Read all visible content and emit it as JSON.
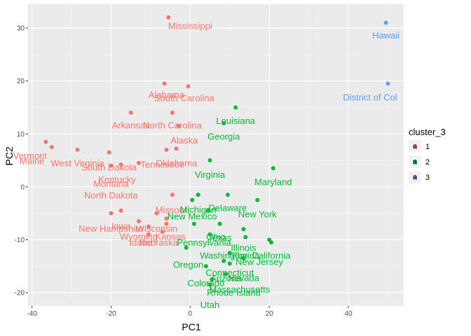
{
  "chart_data": {
    "type": "scatter",
    "title": "",
    "xlabel": "PC1",
    "ylabel": "PC2",
    "xlim": [
      -41,
      54
    ],
    "ylim": [
      -22.5,
      34.5
    ],
    "x_ticks": [
      -40,
      -20,
      0,
      20,
      40
    ],
    "y_ticks": [
      -20,
      -10,
      0,
      10,
      20,
      30
    ],
    "x_tick_labels": [
      "-40",
      "-20",
      "0",
      "20",
      "40"
    ],
    "y_tick_labels": [
      "-20",
      "-10",
      "0",
      "10",
      "20",
      "30"
    ],
    "grid": true,
    "legend": {
      "title": "cluster_3",
      "placement": "right",
      "entries": [
        {
          "label": "1",
          "color": "#F8766D",
          "glyph": "a"
        },
        {
          "label": "2",
          "color": "#00BA38",
          "glyph": "a"
        },
        {
          "label": "3",
          "color": "#619CFF",
          "glyph": "a"
        }
      ]
    },
    "series": [
      {
        "name": "1",
        "color": "#F8766D",
        "points": [
          {
            "x": -5.5,
            "y": 32,
            "label": "Mississippi"
          },
          {
            "x": -6.5,
            "y": 19.5,
            "label": "Alabama"
          },
          {
            "x": -0.5,
            "y": 19,
            "label": "South Carolina"
          },
          {
            "x": -15,
            "y": 14,
            "label": "Arkansas"
          },
          {
            "x": -4.5,
            "y": 14,
            "label": "North Carolina"
          },
          {
            "x": -3,
            "y": 11.5
          },
          {
            "x": -6,
            "y": 7,
            "label": "Alaska"
          },
          {
            "x": -36.5,
            "y": 8.5,
            "label": "Vermont"
          },
          {
            "x": -35,
            "y": 7.5,
            "label": "Maine"
          },
          {
            "x": -28.5,
            "y": 7,
            "label": "West Virginia"
          },
          {
            "x": -20.5,
            "y": 6.5,
            "label": "South Dakota"
          },
          {
            "x": -3.5,
            "y": 7.2,
            "label": "Oklahoma"
          },
          {
            "x": -17.5,
            "y": 4.2,
            "label": "Kentucky"
          },
          {
            "x": -20,
            "y": 4,
            "label": "Montana"
          },
          {
            "x": -13,
            "y": 4.5,
            "label": "Tennessee"
          },
          {
            "x": -4.5,
            "y": -1.5,
            "label": "North Dakota"
          },
          {
            "x": -20,
            "y": -5,
            "label": "Missouri"
          },
          {
            "x": -17.5,
            "y": -4.5,
            "label": "Iowa"
          },
          {
            "x": -8.5,
            "y": -5,
            "label": "New Hampshire"
          },
          {
            "x": -6,
            "y": -6,
            "label": "Wisconsin"
          },
          {
            "x": -6,
            "y": -7,
            "label": "Kansas"
          },
          {
            "x": -13,
            "y": -6.5,
            "label": "Wyoming"
          },
          {
            "x": -10.5,
            "y": -7.5,
            "label": "Idaho"
          },
          {
            "x": -7,
            "y": -8.5,
            "label": "Nebraska"
          },
          {
            "x": -10.5,
            "y": -9
          }
        ]
      },
      {
        "name": "2",
        "color": "#00BA38",
        "points": [
          {
            "x": 11.5,
            "y": 15,
            "label": "Louisiana"
          },
          {
            "x": 8.5,
            "y": 12,
            "label": "Georgia"
          },
          {
            "x": 5,
            "y": 5,
            "label": "Virginia"
          },
          {
            "x": 21,
            "y": 3.5,
            "label": "Maryland"
          },
          {
            "x": 9.5,
            "y": -1.5,
            "label": "Delaware"
          },
          {
            "x": 17,
            "y": -2.5,
            "label": "New York"
          },
          {
            "x": 2,
            "y": -1.5,
            "label": "Michigan"
          },
          {
            "x": 0.5,
            "y": -2.5,
            "label": "New Mexico"
          },
          {
            "x": 4.5,
            "y": -4.5
          },
          {
            "x": 13.5,
            "y": -8,
            "label": "Ohio"
          },
          {
            "x": 7.5,
            "y": -7,
            "label": "Texas"
          },
          {
            "x": 5,
            "y": -9,
            "label": "Pennsylvania"
          },
          {
            "x": 1,
            "y": -7,
            "label": "Illinois"
          },
          {
            "x": 20,
            "y": -10,
            "label": "Washington"
          },
          {
            "x": 14,
            "y": -9.5,
            "label": "Florida"
          },
          {
            "x": 20.5,
            "y": -10.5,
            "label": "California"
          },
          {
            "x": -1,
            "y": -11.5,
            "label": "Oregon"
          },
          {
            "x": 10,
            "y": -12.5,
            "label": "New Jersey"
          },
          {
            "x": 13.5,
            "y": -13.5,
            "label": "Connecticut"
          },
          {
            "x": 10,
            "y": -14.5,
            "label": "Arizona"
          },
          {
            "x": 8.5,
            "y": -14,
            "label": "Nevada"
          },
          {
            "x": 4,
            "y": -15,
            "label": "Colorado"
          },
          {
            "x": 9,
            "y": -16.5,
            "label": "Massachusetts"
          },
          {
            "x": 5.5,
            "y": -17.5,
            "label": "Rhode Island"
          },
          {
            "x": 5,
            "y": -18.5,
            "label": "Utah"
          }
        ]
      },
      {
        "name": "3",
        "color": "#619CFF",
        "points": [
          {
            "x": 49.5,
            "y": 31,
            "label": "Hawaii"
          },
          {
            "x": 50,
            "y": 19.5,
            "label": "District of Columbia"
          }
        ]
      }
    ],
    "annotations": [
      {
        "text": "Mississippi",
        "x": 0,
        "y": 30.4,
        "color": "#F8766D"
      },
      {
        "text": "Alabama",
        "x": -6,
        "y": 17.4,
        "color": "#F8766D"
      },
      {
        "text": "South Carolina",
        "x": -1.5,
        "y": 16.8,
        "color": "#F8766D"
      },
      {
        "text": "Arkansas",
        "x": -15,
        "y": 11.6,
        "color": "#F8766D"
      },
      {
        "text": "North Carolina",
        "x": -4.5,
        "y": 11.6,
        "color": "#F8766D"
      },
      {
        "text": "Alaska",
        "x": -1.5,
        "y": 8.8,
        "color": "#F8766D"
      },
      {
        "text": "Vermont",
        "x": -40.5,
        "y": 5.9,
        "color": "#F8766D"
      },
      {
        "text": "Maine",
        "x": -40,
        "y": 4.9,
        "color": "#F8766D"
      },
      {
        "text": "West Virginia",
        "x": -28.5,
        "y": 4.5,
        "color": "#F8766D"
      },
      {
        "text": "South Dakota",
        "x": -20.5,
        "y": 3.7,
        "color": "#F8766D"
      },
      {
        "text": "Oklahoma",
        "x": -3.5,
        "y": 4.5,
        "color": "#F8766D"
      },
      {
        "text": "Tennessee",
        "x": -7,
        "y": 4.2,
        "color": "#F8766D"
      },
      {
        "text": "Kentucky",
        "x": -18.5,
        "y": 1.4,
        "color": "#F8766D"
      },
      {
        "text": "Montana",
        "x": -20,
        "y": 0.6,
        "color": "#F8766D"
      },
      {
        "text": "North Dakota",
        "x": -20,
        "y": -1.6,
        "color": "#F8766D"
      },
      {
        "text": "Missouri",
        "x": -4.5,
        "y": -4.4,
        "color": "#F8766D"
      },
      {
        "text": "Iowa",
        "x": -17.5,
        "y": -7.4,
        "color": "#F8766D"
      },
      {
        "text": "New Hampshire",
        "x": -20,
        "y": -7.9,
        "color": "#F8766D"
      },
      {
        "text": "Wisconsin",
        "x": -8.5,
        "y": -7.9,
        "color": "#F8766D"
      },
      {
        "text": "Kansas",
        "x": -5,
        "y": -9.4,
        "color": "#F8766D"
      },
      {
        "text": "Wyoming",
        "x": -13,
        "y": -9.4,
        "color": "#F8766D"
      },
      {
        "text": "Idaho",
        "x": -12.5,
        "y": -10.5,
        "color": "#F8766D"
      },
      {
        "text": "Nebraska",
        "x": -8,
        "y": -10.5,
        "color": "#F8766D"
      },
      {
        "text": "Louisiana",
        "x": 11.5,
        "y": 12.5,
        "color": "#00BA38"
      },
      {
        "text": "Georgia",
        "x": 8.5,
        "y": 9.5,
        "color": "#00BA38"
      },
      {
        "text": "Virginia",
        "x": 5,
        "y": 2.3,
        "color": "#00BA38"
      },
      {
        "text": "Maryland",
        "x": 21,
        "y": 0.9,
        "color": "#00BA38"
      },
      {
        "text": "Delaware",
        "x": 9.5,
        "y": -4.0,
        "color": "#00BA38"
      },
      {
        "text": "New York",
        "x": 17,
        "y": -5.2,
        "color": "#00BA38"
      },
      {
        "text": "Michigan",
        "x": 2,
        "y": -4.3,
        "color": "#00BA38"
      },
      {
        "text": "New Mexico",
        "x": 0.5,
        "y": -5.6,
        "color": "#00BA38"
      },
      {
        "text": "Ohio",
        "x": 6.5,
        "y": -9.4,
        "color": "#00BA38"
      },
      {
        "text": "Texas",
        "x": 7.5,
        "y": -9.6,
        "color": "#00BA38"
      },
      {
        "text": "Pennsylvania",
        "x": 3.5,
        "y": -10.5,
        "color": "#00BA38"
      },
      {
        "text": "Illinois",
        "x": 13.5,
        "y": -11.5,
        "color": "#00BA38"
      },
      {
        "text": "Washington",
        "x": 8.5,
        "y": -13.0,
        "color": "#00BA38"
      },
      {
        "text": "Florida",
        "x": 14,
        "y": -13.0,
        "color": "#00BA38"
      },
      {
        "text": "California",
        "x": 20.5,
        "y": -13.0,
        "color": "#00BA38"
      },
      {
        "text": "New Jersey",
        "x": 17.5,
        "y": -14.2,
        "color": "#00BA38"
      },
      {
        "text": "Oregon",
        "x": -0.5,
        "y": -14.7,
        "color": "#00BA38"
      },
      {
        "text": "Connecticut",
        "x": 10,
        "y": -16.2,
        "color": "#00BA38"
      },
      {
        "text": "Arizona",
        "x": 9,
        "y": -17.3,
        "color": "#00BA38"
      },
      {
        "text": "Nevada",
        "x": 13.5,
        "y": -17.2,
        "color": "#00BA38"
      },
      {
        "text": "Colorado",
        "x": 4,
        "y": -18.2,
        "color": "#00BA38"
      },
      {
        "text": "Massachusetts",
        "x": 12.5,
        "y": -19.4,
        "color": "#00BA38"
      },
      {
        "text": "Rhode Island",
        "x": 11,
        "y": -20.0,
        "color": "#00BA38"
      },
      {
        "text": "Utah",
        "x": 5,
        "y": -22.3,
        "color": "#00BA38"
      },
      {
        "text": "Hawaii",
        "x": 49.5,
        "y": 28.6,
        "color": "#619CFF"
      },
      {
        "text": "District of Col",
        "x": 45.5,
        "y": 16.9,
        "color": "#619CFF"
      }
    ]
  }
}
